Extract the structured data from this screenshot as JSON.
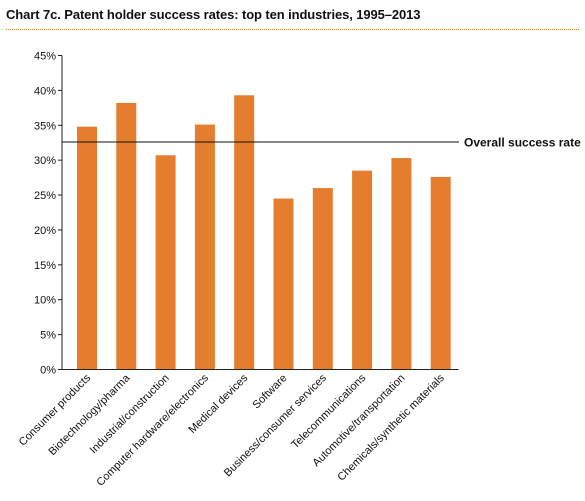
{
  "title": "Chart 7c. Patent holder success rates: top ten industries, 1995–2013",
  "colors": {
    "bar": "#e57d2e",
    "title_rule": "#e07a2b",
    "axis": "#222222",
    "reference_line": "#111111"
  },
  "chart_data": {
    "type": "bar",
    "title": "Chart 7c. Patent holder success rates: top ten industries, 1995–2013",
    "xlabel": "",
    "ylabel": "",
    "ylim": [
      0,
      45
    ],
    "yticks": [
      0,
      5,
      10,
      15,
      20,
      25,
      30,
      35,
      40,
      45
    ],
    "ytick_labels": [
      "0%",
      "5%",
      "10%",
      "15%",
      "20%",
      "25%",
      "30%",
      "35%",
      "40%",
      "45%"
    ],
    "categories": [
      "Consumer products",
      "Biotechnology/pharma",
      "Industrial/construction",
      "Computer hardware/electronics",
      "Medical devices",
      "Software",
      "Business/consumer services",
      "Telecommunications",
      "Automotive/transportation",
      "Chemicals/synthetic materials"
    ],
    "values": [
      34.8,
      38.2,
      30.7,
      35.1,
      39.3,
      24.5,
      26.0,
      28.5,
      30.3,
      27.6
    ],
    "reference_line": {
      "label": "Overall success rate",
      "value": 32.6
    },
    "grid": false,
    "legend": "none"
  }
}
